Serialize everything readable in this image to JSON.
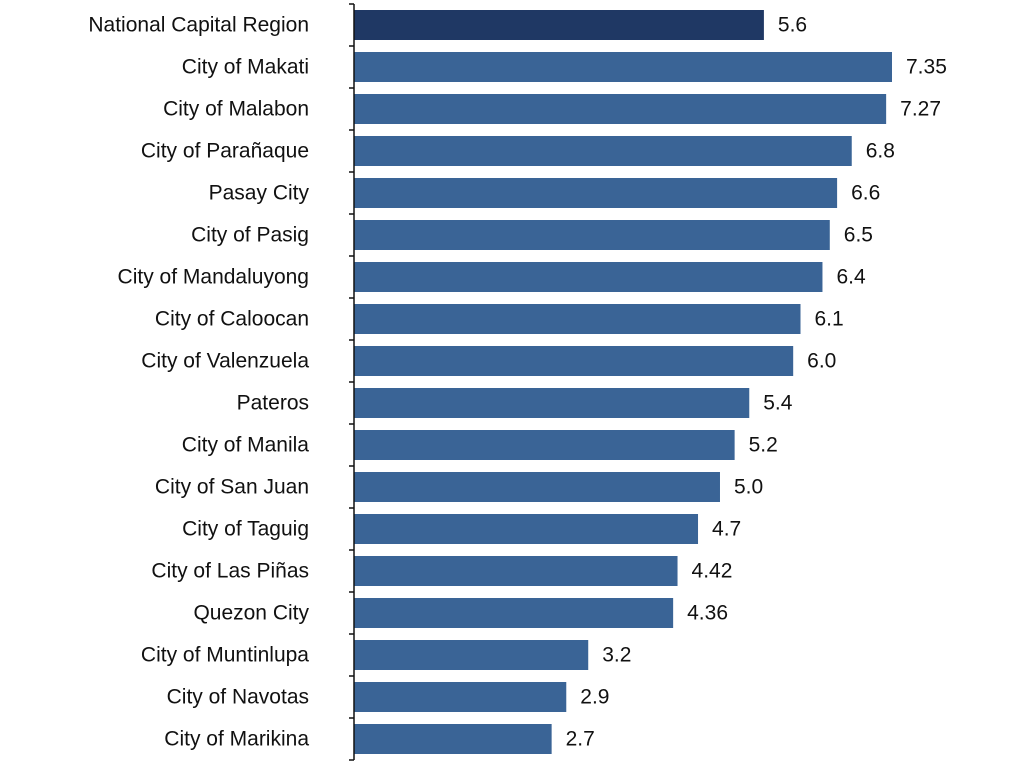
{
  "chart_data": {
    "type": "bar",
    "orientation": "horizontal",
    "title": "",
    "xlabel": "",
    "ylabel": "",
    "categories": [
      "National Capital Region",
      "City of Makati",
      "City of Malabon",
      "City of Parañaque",
      "Pasay City",
      "City of Pasig",
      "City of Mandaluyong",
      "City of Caloocan",
      "City of Valenzuela",
      "Pateros",
      "City of Manila",
      "City of San Juan",
      "City of Taguig",
      "City of Las Piñas",
      "Quezon City",
      "City of Muntinlupa",
      "City of Navotas",
      "City of Marikina"
    ],
    "values": [
      5.6,
      7.35,
      7.27,
      6.8,
      6.6,
      6.5,
      6.4,
      6.1,
      6.0,
      5.4,
      5.2,
      5.0,
      4.7,
      4.42,
      4.36,
      3.2,
      2.9,
      2.7
    ],
    "value_labels": [
      "5.6",
      "7.35",
      "7.27",
      "6.8",
      "6.6",
      "6.5",
      "6.4",
      "6.1",
      "6.0",
      "5.4",
      "5.2",
      "5.0",
      "4.7",
      "4.42",
      "4.36",
      "3.2",
      "2.9",
      "2.7"
    ],
    "xlim": [
      0,
      7.35
    ],
    "grid": false,
    "legend": "none",
    "colors": {
      "highlight": "#1f3864",
      "bar": "#3a6496",
      "axis": "#111111",
      "text": "#111111"
    },
    "highlight_index": 0
  }
}
